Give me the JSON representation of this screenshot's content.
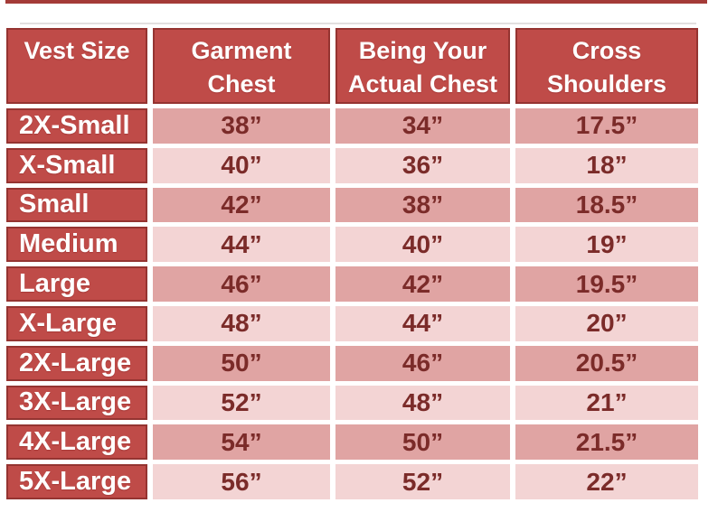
{
  "colors": {
    "brick_red": "#BF4B48",
    "cell_border_red": "#953431",
    "top_accent_line_red": "#A43B38",
    "row_pink_dark": "#E0A4A3",
    "row_pink_light": "#F3D4D4",
    "value_text_maroon": "#7B2B29",
    "header_text_white": "#FFFFFF"
  },
  "table": {
    "headers": [
      {
        "line1": "Vest Size",
        "line2": ""
      },
      {
        "line1": "Garment",
        "line2": "Chest"
      },
      {
        "line1": "Being Your",
        "line2": "Actual Chest"
      },
      {
        "line1": "Cross",
        "line2": "Shoulders"
      }
    ],
    "rows": [
      {
        "size": "2X-Small",
        "values": [
          "38”",
          "34”",
          "17.5”"
        ]
      },
      {
        "size": "X-Small",
        "values": [
          "40”",
          "36”",
          "18”"
        ]
      },
      {
        "size": "Small",
        "values": [
          "42”",
          "38”",
          "18.5”"
        ]
      },
      {
        "size": "Medium",
        "values": [
          "44”",
          "40”",
          "19”"
        ]
      },
      {
        "size": "Large",
        "values": [
          "46”",
          "42”",
          "19.5”"
        ]
      },
      {
        "size": "X-Large",
        "values": [
          "48”",
          "44”",
          "20”"
        ]
      },
      {
        "size": "2X-Large",
        "values": [
          "50”",
          "46”",
          "20.5”"
        ]
      },
      {
        "size": "3X-Large",
        "values": [
          "52”",
          "48”",
          "21”"
        ]
      },
      {
        "size": "4X-Large",
        "values": [
          "54”",
          "50”",
          "21.5”"
        ]
      },
      {
        "size": "5X-Large",
        "values": [
          "56”",
          "52”",
          "22”"
        ]
      }
    ]
  },
  "chart_data": {
    "type": "table",
    "columns": [
      "Vest Size",
      "Garment Chest",
      "Being Your Actual Chest",
      "Cross Shoulders"
    ],
    "rows": [
      [
        "2X-Small",
        "38”",
        "34”",
        "17.5”"
      ],
      [
        "X-Small",
        "40”",
        "36”",
        "18”"
      ],
      [
        "Small",
        "42”",
        "38”",
        "18.5”"
      ],
      [
        "Medium",
        "44”",
        "40”",
        "19”"
      ],
      [
        "Large",
        "46”",
        "42”",
        "19.5”"
      ],
      [
        "X-Large",
        "48”",
        "44”",
        "20”"
      ],
      [
        "2X-Large",
        "50”",
        "46”",
        "20.5”"
      ],
      [
        "3X-Large",
        "52”",
        "48”",
        "21”"
      ],
      [
        "4X-Large",
        "54”",
        "50”",
        "21.5”"
      ],
      [
        "5X-Large",
        "56”",
        "52”",
        "22”"
      ]
    ]
  }
}
